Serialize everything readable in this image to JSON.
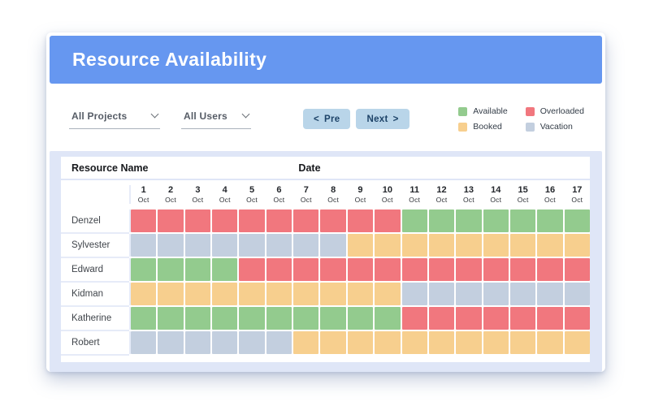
{
  "header": {
    "title": "Resource Availability"
  },
  "toolbar": {
    "filters": [
      {
        "label": "All Projects"
      },
      {
        "label": "All Users"
      }
    ],
    "pager": {
      "prev_icon": "<",
      "prev_label": "Pre",
      "next_label": "Next",
      "next_icon": ">"
    }
  },
  "legend": {
    "items": [
      {
        "label": "Available",
        "color": "#93cb8e"
      },
      {
        "label": "Overloaded",
        "color": "#f1777e"
      },
      {
        "label": "Booked",
        "color": "#f7cf8e"
      },
      {
        "label": "Vacation",
        "color": "#c3cfdf"
      }
    ]
  },
  "colors": {
    "header_blue": "#6697f0",
    "table_background": "#dfe6f7",
    "button_blue": "#b9d5e9",
    "button_text": "#1d4368"
  },
  "table": {
    "col_headers": {
      "resource": "Resource Name",
      "date": "Date"
    },
    "dates": [
      {
        "day": "1",
        "month": "Oct"
      },
      {
        "day": "2",
        "month": "Oct"
      },
      {
        "day": "3",
        "month": "Oct"
      },
      {
        "day": "4",
        "month": "Oct"
      },
      {
        "day": "5",
        "month": "Oct"
      },
      {
        "day": "6",
        "month": "Oct"
      },
      {
        "day": "7",
        "month": "Oct"
      },
      {
        "day": "8",
        "month": "Oct"
      },
      {
        "day": "9",
        "month": "Oct"
      },
      {
        "day": "10",
        "month": "Oct"
      },
      {
        "day": "11",
        "month": "Oct"
      },
      {
        "day": "12",
        "month": "Oct"
      },
      {
        "day": "13",
        "month": "Oct"
      },
      {
        "day": "14",
        "month": "Oct"
      },
      {
        "day": "15",
        "month": "Oct"
      },
      {
        "day": "16",
        "month": "Oct"
      },
      {
        "day": "17",
        "month": "Oct"
      }
    ],
    "statuses": {
      "available": "#93cb8e",
      "booked": "#f7cf8e",
      "overloaded": "#f1777e",
      "vacation": "#c3cfdf"
    },
    "rows": [
      {
        "name": "Denzel",
        "cells": [
          "overloaded",
          "overloaded",
          "overloaded",
          "overloaded",
          "overloaded",
          "overloaded",
          "overloaded",
          "overloaded",
          "overloaded",
          "overloaded",
          "available",
          "available",
          "available",
          "available",
          "available",
          "available",
          "available"
        ]
      },
      {
        "name": "Sylvester",
        "cells": [
          "vacation",
          "vacation",
          "vacation",
          "vacation",
          "vacation",
          "vacation",
          "vacation",
          "vacation",
          "booked",
          "booked",
          "booked",
          "booked",
          "booked",
          "booked",
          "booked",
          "booked",
          "booked"
        ]
      },
      {
        "name": "Edward",
        "cells": [
          "available",
          "available",
          "available",
          "available",
          "overloaded",
          "overloaded",
          "overloaded",
          "overloaded",
          "overloaded",
          "overloaded",
          "overloaded",
          "overloaded",
          "overloaded",
          "overloaded",
          "overloaded",
          "overloaded",
          "overloaded"
        ]
      },
      {
        "name": "Kidman",
        "cells": [
          "booked",
          "booked",
          "booked",
          "booked",
          "booked",
          "booked",
          "booked",
          "booked",
          "booked",
          "booked",
          "vacation",
          "vacation",
          "vacation",
          "vacation",
          "vacation",
          "vacation",
          "vacation"
        ]
      },
      {
        "name": "Katherine",
        "cells": [
          "available",
          "available",
          "available",
          "available",
          "available",
          "available",
          "available",
          "available",
          "available",
          "available",
          "overloaded",
          "overloaded",
          "overloaded",
          "overloaded",
          "overloaded",
          "overloaded",
          "overloaded"
        ]
      },
      {
        "name": "Robert",
        "cells": [
          "vacation",
          "vacation",
          "vacation",
          "vacation",
          "vacation",
          "vacation",
          "booked",
          "booked",
          "booked",
          "booked",
          "booked",
          "booked",
          "booked",
          "booked",
          "booked",
          "booked",
          "booked"
        ]
      }
    ]
  }
}
